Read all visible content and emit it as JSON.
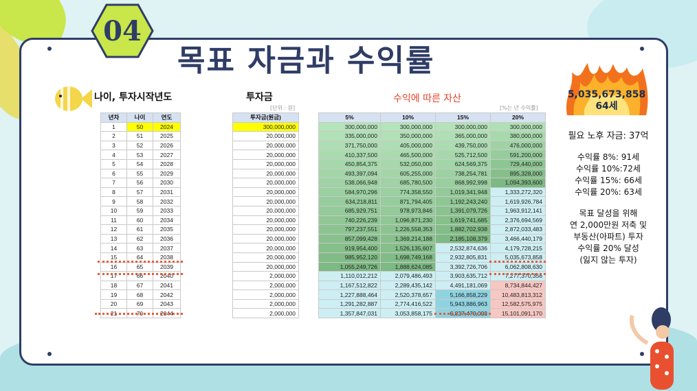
{
  "badge_number": "04",
  "title": "목표 자금과 수익률",
  "sections": {
    "age_label": "나이, 투자시작년도",
    "invest_label": "투자금",
    "asset_label": "수익에 따른 자산",
    "unit_left": "[단위 : 원]",
    "unit_right": "[%는 년 수익률]"
  },
  "left_table": {
    "headers": [
      "년차",
      "나이",
      "연도"
    ],
    "rows": [
      [
        "1",
        "50",
        "2024"
      ],
      [
        "2",
        "51",
        "2025"
      ],
      [
        "3",
        "52",
        "2026"
      ],
      [
        "4",
        "53",
        "2027"
      ],
      [
        "5",
        "54",
        "2028"
      ],
      [
        "6",
        "55",
        "2029"
      ],
      [
        "7",
        "56",
        "2030"
      ],
      [
        "8",
        "57",
        "2031"
      ],
      [
        "9",
        "58",
        "2032"
      ],
      [
        "10",
        "59",
        "2033"
      ],
      [
        "11",
        "60",
        "2034"
      ],
      [
        "12",
        "61",
        "2035"
      ],
      [
        "13",
        "62",
        "2036"
      ],
      [
        "14",
        "63",
        "2037"
      ],
      [
        "15",
        "64",
        "2038"
      ],
      [
        "16",
        "65",
        "2039"
      ],
      [
        "17",
        "66",
        "2040"
      ],
      [
        "18",
        "67",
        "2041"
      ],
      [
        "19",
        "68",
        "2042"
      ],
      [
        "20",
        "69",
        "2043"
      ],
      [
        "21",
        "70",
        "2044"
      ]
    ]
  },
  "invest_table": {
    "header": "투자금(원금)",
    "values": [
      "300,000,000",
      "20,000,000",
      "20,000,000",
      "20,000,000",
      "20,000,000",
      "20,000,000",
      "20,000,000",
      "20,000,000",
      "20,000,000",
      "20,000,000",
      "20,000,000",
      "20,000,000",
      "20,000,000",
      "20,000,000",
      "20,000,000",
      "20,000,000",
      "2,000,000",
      "2,000,000",
      "2,000,000",
      "2,000,000",
      "2,000,000"
    ]
  },
  "asset_table": {
    "headers": [
      "5%",
      "10%",
      "15%",
      "20%"
    ],
    "rows": [
      [
        "300,000,000",
        "300,000,000",
        "300,000,000",
        "300,000,000"
      ],
      [
        "335,000,000",
        "350,000,000",
        "365,000,000",
        "380,000,000"
      ],
      [
        "371,750,000",
        "405,000,000",
        "439,750,000",
        "476,000,000"
      ],
      [
        "410,337,500",
        "465,500,000",
        "525,712,500",
        "591,200,000"
      ],
      [
        "450,854,375",
        "532,050,000",
        "624,569,375",
        "729,440,000"
      ],
      [
        "493,397,094",
        "605,255,000",
        "738,254,781",
        "895,328,000"
      ],
      [
        "538,066,948",
        "685,780,500",
        "868,992,998",
        "1,094,393,600"
      ],
      [
        "584,970,296",
        "774,358,550",
        "1,019,341,948",
        "1,333,272,320"
      ],
      [
        "634,218,811",
        "871,794,405",
        "1,192,243,240",
        "1,619,926,784"
      ],
      [
        "685,929,751",
        "978,973,846",
        "1,391,079,726",
        "1,963,912,141"
      ],
      [
        "740,226,239",
        "1,096,871,230",
        "1,619,741,685",
        "2,376,694,569"
      ],
      [
        "797,237,551",
        "1,226,558,353",
        "1,882,702,938",
        "2,872,033,483"
      ],
      [
        "857,099,428",
        "1,369,214,188",
        "2,185,108,379",
        "3,466,440,179"
      ],
      [
        "919,954,400",
        "1,526,135,607",
        "2,532,874,636",
        "4,179,728,215"
      ],
      [
        "985,952,120",
        "1,698,749,168",
        "2,932,805,831",
        "5,035,673,858"
      ],
      [
        "1,055,249,726",
        "1,888,624,085",
        "3,392,726,706",
        "6,062,808,630"
      ],
      [
        "1,110,012,212",
        "2,079,486,493",
        "3,903,635,712",
        "7,277,370,356"
      ],
      [
        "1,167,512,822",
        "2,289,435,142",
        "4,491,181,069",
        "8,734,844,427"
      ],
      [
        "1,227,888,464",
        "2,520,378,657",
        "5,166,858,229",
        "10,483,813,312"
      ],
      [
        "1,291,282,887",
        "2,774,416,522",
        "5,943,886,963",
        "12,582,575,975"
      ],
      [
        "1,357,847,031",
        "3,053,858,175",
        "6,837,470,008",
        "15,101,091,170"
      ]
    ]
  },
  "highlight": {
    "amount": "5,035,673,858",
    "age": "64세"
  },
  "notes": {
    "required": "필요 노후 자금: 37억",
    "rates": [
      "수익률 8%: 91세",
      "수익률 10%:72세",
      "수익률 15%: 66세",
      "수익률 20%: 63세"
    ],
    "goal": [
      "목표 달성을 위해",
      "연 2,000만원 저축 및",
      "부동산(아파트) 투자",
      "수익률 20% 달성",
      "(잃지 않는 투자)"
    ]
  },
  "colors": {
    "navy": "#2f3d66",
    "badge": "#c9e64a",
    "red": "#e4432b"
  }
}
